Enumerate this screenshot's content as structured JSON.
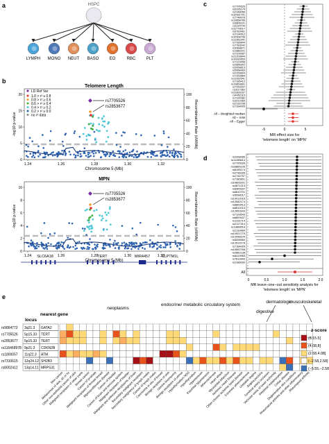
{
  "panels": {
    "a": {
      "letter": "a",
      "root": "HSPC",
      "cells": [
        "LYMPH",
        "MONO",
        "NEUT",
        "BASO",
        "EO",
        "RBC",
        "PLT"
      ],
      "cell_colors": [
        "#4aa3d8",
        "#4d78b8",
        "#e08f5a",
        "#4aa0c8",
        "#e0702a",
        "#d84848",
        "#c8a8d0"
      ]
    },
    "b": {
      "letter": "b",
      "legend_title": "LD Ref Var",
      "legend": [
        {
          "label": "1.0 > r² ≥ 0.8",
          "color": "#e0312a"
        },
        {
          "label": "0.8 > r² ≥ 0.6",
          "color": "#f09a2a"
        },
        {
          "label": "0.6 > r² ≥ 0.4",
          "color": "#44b04a"
        },
        {
          "label": "0.4 > r² ≥ 0.2",
          "color": "#52c8d8"
        },
        {
          "label": "0.2 > r² ≥ 0.0",
          "color": "#2e63b0"
        },
        {
          "label": "no r² data",
          "color": "#888888"
        }
      ],
      "ylabel_left": "-log10 p-value",
      "ylabel_right": "Recombination Rate (cM/Mb)",
      "xlabel": "Chromosome 5 (Mb)",
      "x_ticks": [
        "1.24",
        "1.26",
        "1.28",
        "1.30",
        "1.32"
      ],
      "right_ticks": [
        "0",
        "20",
        "40",
        "60",
        "80",
        "100"
      ],
      "plots": [
        {
          "title": "Telomere Length",
          "left_ticks": [
            "0",
            "5",
            "10",
            "15",
            "20"
          ],
          "snp1": "rs7705526",
          "snp2": "rs2853677"
        },
        {
          "title": "MPN",
          "left_ticks": [
            "0",
            "2",
            "4",
            "6",
            "8",
            "10"
          ],
          "snp1": "rs7705526",
          "snp2": "rs2853677"
        }
      ],
      "genes": [
        "SLC6A18",
        "TERT",
        "MIR4457",
        "CLPTM1L"
      ]
    },
    "c": {
      "letter": "c",
      "snps": [
        "rs7705526",
        "rs6195174",
        "rs2148056",
        "rs10931701",
        "rs7748078",
        "rs10858765",
        "rs3805101",
        "rs1120744",
        "rs11778017",
        "rs6783461",
        "rs7134512",
        "rs10908798",
        "rs11952341",
        "rs7189844",
        "rs7783042",
        "rs9368871",
        "rs1880221",
        "rs7109287",
        "rs11203844",
        "rs10916553",
        "rs7123958",
        "rs2856902",
        "rs9258813",
        "rs5958463",
        "rs2159604",
        "rs7152884",
        "rs11092541",
        "rs7185412",
        "rs10853891",
        "rs7153297",
        "rs3117362",
        "rs11893167",
        "rs4452115",
        "rs7192082",
        "rs3212960",
        "rs2132198",
        "rs7164005"
      ],
      "summary_labels": [
        "All – Weighted median",
        "All – IVW",
        "All – Egger"
      ],
      "xlabel1": "MR effect size for",
      "xlabel2": "'telomere length' on 'MPN'",
      "x_ticks": [
        "-5",
        "0",
        "5"
      ]
    },
    "d": {
      "letter": "d",
      "snps": [
        "rs2208085",
        "rs11158614",
        "rs7705526",
        "rs33865126",
        "rs6195174",
        "rs2736165",
        "rs1744757",
        "rs7185891",
        "rs10826201",
        "rs4871213",
        "rs6905307",
        "rs6810701",
        "rs5098017",
        "rs10912015",
        "rs12082174",
        "rs6809413",
        "rs8912013",
        "rs12653343",
        "rs7128543",
        "rs6809437",
        "rs1311714",
        "rs2117314",
        "rs11868518",
        "rs2133489",
        "rs10921775",
        "rs12098104",
        "rs5208960",
        "rs12519178",
        "rs7164005",
        "rs10892768",
        "rs2862138",
        "rs8419983",
        "rs7812843",
        "rs2166090"
      ],
      "all_label": "All",
      "xlabel1": "MR leave−one−out sensitivity analysis for",
      "xlabel2": "'telomere length' on 'MPN'",
      "x_ticks": [
        "0",
        "0.5",
        "1.0",
        "1.5",
        "2.0"
      ]
    },
    "e": {
      "letter": "e",
      "head_locus": "locus",
      "head_gene": "nearest gene",
      "rows": [
        {
          "snp": "rs9864772",
          "locus": "3q21.3",
          "gene": "GATA2"
        },
        {
          "snp": "rs7705526",
          "locus": "5p15.33",
          "gene": "TERT"
        },
        {
          "snp": "rs2853677",
          "locus": "5p15.33",
          "gene": "TERT"
        },
        {
          "snp": "rs116468978",
          "locus": "9p21.3",
          "gene": "CDKN2B"
        },
        {
          "snp": "rs1800057",
          "locus": "11q22.3",
          "gene": "ATM"
        },
        {
          "snp": "rs7310615",
          "locus": "12q24.12",
          "gene": "SH2B3"
        },
        {
          "snp": "rs8002412",
          "locus": "13q14.11",
          "gene": "MRPS31"
        }
      ],
      "groups": [
        "neoplasms",
        "endocrine/ metabolic",
        "circulatory system",
        "digestive",
        "dermatologic",
        "musculoskeletal"
      ],
      "columns": [
        "Skin cancer",
        "Melanomas of skin, dx or hx",
        "Other non-epithelial cancer of skin",
        "Malignant neoplasm of other parts",
        "Breast cancer",
        "Cancer of prostate",
        "Malignant neoplasm of female breast",
        "Myeloproliferative disease",
        "Cancer of bladder",
        "Cancer of brain and nervous system",
        "Malignant neoplasm of bladder",
        "Malignant and unknown neoplasms of brain",
        "Secondary malignant neoplasm",
        "Secondary malignancy of lymph nodes",
        "Cancer of lymph nodes",
        "Carcinoma in situ of breast",
        "Benign neoplasm of skin",
        "Uterine leiomyoma",
        "Benign neoplasm of uterus",
        "Hypothyroidism NOS",
        "Hypothyroidism",
        "Hypertension",
        "Essential hypertension",
        "Atherosclerosis",
        "Heart attack",
        "Myocardial infarction",
        "Ischemic Heart Disease",
        "Other chronic ischemic heart disease",
        "Coronary atherosclerosis",
        "Unstable angina",
        "Angina pectoris",
        "Cerebral artery occlusion",
        "Varicose veins of lower extremity",
        "Intestinal malabsorption",
        "Celiac disease",
        "Degenerative skin conditions",
        "Rheumatoid arthritis and other inflammatory",
        "Rheumatoid arthritis"
      ],
      "legend_title": "z-score",
      "legend": [
        {
          "label": "(8,15.5]",
          "color": "#a50f15"
        },
        {
          "label": "(4,08,8]",
          "color": "#e8531c"
        },
        {
          "label": "(2.58,4.08]",
          "color": "#fed976"
        },
        {
          "label": "(−2.58,2.58]",
          "color": "#ffffff"
        },
        {
          "label": "(−5.55,−2.58]",
          "color": "#3b6fb6"
        }
      ],
      "cells": [
        [
          0,
          2,
          0,
          0,
          0,
          0,
          0,
          0,
          0,
          0,
          0,
          0,
          0,
          0,
          0,
          0,
          0,
          0,
          0,
          0,
          0,
          0,
          0,
          0,
          0,
          0,
          0,
          0,
          0,
          0,
          0,
          0,
          0,
          0,
          0,
          0,
          0,
          0
        ],
        [
          1,
          3,
          2,
          2,
          0,
          0,
          2,
          0,
          3,
          2,
          0,
          2,
          0,
          0,
          0,
          0,
          2,
          2,
          0,
          0,
          0,
          0,
          0,
          2,
          0,
          0,
          0,
          0,
          0,
          0,
          0,
          0,
          2,
          0,
          0,
          0,
          0,
          0
        ],
        [
          1,
          2,
          2,
          2,
          0,
          0,
          2,
          0,
          2,
          1,
          2,
          2,
          0,
          0,
          0,
          0,
          2,
          2,
          2,
          0,
          0,
          0,
          0,
          0,
          0,
          0,
          0,
          0,
          0,
          0,
          0,
          0,
          0,
          0,
          2,
          0,
          0,
          0
        ],
        [
          0,
          0,
          0,
          0,
          0,
          0,
          0,
          0,
          0,
          0,
          0,
          0,
          0,
          0,
          0,
          0,
          0,
          0,
          0,
          2,
          0,
          0,
          0,
          3,
          2,
          0,
          2,
          2,
          2,
          2,
          0,
          0,
          0,
          0,
          0,
          0,
          0,
          0
        ],
        [
          3,
          2,
          1,
          2,
          2,
          1,
          2,
          0,
          0,
          0,
          0,
          0,
          0,
          0,
          0,
          4,
          4,
          3,
          2,
          0,
          0,
          0,
          0,
          0,
          0,
          0,
          0,
          0,
          0,
          0,
          0,
          0,
          0,
          0,
          0,
          0,
          0,
          0
        ],
        [
          0,
          0,
          0,
          0,
          -1,
          0,
          0,
          -1,
          0,
          0,
          0,
          4,
          3,
          4,
          0,
          0,
          0,
          0,
          0,
          -1,
          2,
          3,
          2,
          2,
          3,
          2,
          3,
          2,
          2,
          0,
          2,
          2,
          0,
          -1,
          3,
          0,
          2,
          2
        ],
        [
          0,
          0,
          0,
          0,
          0,
          0,
          0,
          0,
          0,
          0,
          0,
          0,
          0,
          0,
          0,
          0,
          0,
          0,
          0,
          0,
          0,
          0,
          0,
          0,
          0,
          0,
          0,
          0,
          0,
          0,
          0,
          0,
          0,
          2,
          -1,
          0,
          0,
          0
        ]
      ]
    }
  }
}
